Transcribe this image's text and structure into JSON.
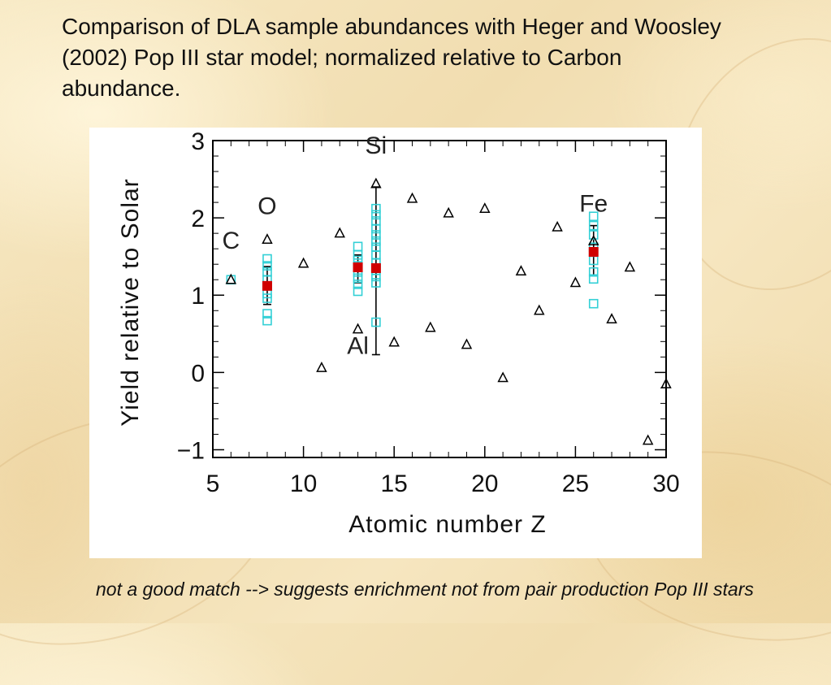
{
  "slide": {
    "title": "Comparison of DLA sample abundances with Heger and Woosley (2002) Pop III star model; normalized relative to Carbon abundance.",
    "footer": "not a good match --> suggests enrichment not from pair production Pop III stars"
  },
  "chart_data": {
    "type": "scatter",
    "xlabel": "Atomic number Z",
    "ylabel": "Yield relative to Solar",
    "xlim": [
      5,
      30
    ],
    "ylim": [
      -1.1,
      3.0
    ],
    "xticks": [
      "5",
      "10",
      "15",
      "20",
      "25",
      "30"
    ],
    "yticks": [
      "3",
      "2",
      "1",
      "0",
      "−1"
    ],
    "xtick_values": [
      5,
      10,
      15,
      20,
      25,
      30
    ],
    "ytick_values": [
      3,
      2,
      1,
      0,
      -1
    ],
    "grid": false,
    "colors": {
      "model": "#000000",
      "dla": "#33d0d6",
      "mean": "#d00000",
      "axis": "#000000"
    },
    "model_points": [
      {
        "x": 6,
        "y": 1.2
      },
      {
        "x": 8,
        "y": 1.72
      },
      {
        "x": 10,
        "y": 1.41
      },
      {
        "x": 11,
        "y": 0.06
      },
      {
        "x": 12,
        "y": 1.8
      },
      {
        "x": 13,
        "y": 0.56
      },
      {
        "x": 14,
        "y": 2.44
      },
      {
        "x": 15,
        "y": 0.39
      },
      {
        "x": 16,
        "y": 2.25
      },
      {
        "x": 17,
        "y": 0.58
      },
      {
        "x": 18,
        "y": 2.06
      },
      {
        "x": 19,
        "y": 0.36
      },
      {
        "x": 20,
        "y": 2.12
      },
      {
        "x": 21,
        "y": -0.07
      },
      {
        "x": 22,
        "y": 1.31
      },
      {
        "x": 23,
        "y": 0.8
      },
      {
        "x": 24,
        "y": 1.88
      },
      {
        "x": 25,
        "y": 1.16
      },
      {
        "x": 26,
        "y": 1.7
      },
      {
        "x": 27,
        "y": 0.69
      },
      {
        "x": 28,
        "y": 1.36
      },
      {
        "x": 29,
        "y": -0.88
      },
      {
        "x": 30,
        "y": -0.15
      }
    ],
    "dla_points": [
      {
        "x": 6,
        "y": 1.2
      },
      {
        "x": 8,
        "y": 1.47
      },
      {
        "x": 8,
        "y": 1.38
      },
      {
        "x": 8,
        "y": 1.3
      },
      {
        "x": 8,
        "y": 1.2
      },
      {
        "x": 8,
        "y": 1.12
      },
      {
        "x": 8,
        "y": 1.02
      },
      {
        "x": 8,
        "y": 0.96
      },
      {
        "x": 8,
        "y": 0.76
      },
      {
        "x": 8,
        "y": 0.67
      },
      {
        "x": 13,
        "y": 1.63
      },
      {
        "x": 13,
        "y": 1.52
      },
      {
        "x": 13,
        "y": 1.45
      },
      {
        "x": 13,
        "y": 1.38
      },
      {
        "x": 13,
        "y": 1.3
      },
      {
        "x": 13,
        "y": 1.22
      },
      {
        "x": 13,
        "y": 1.14
      },
      {
        "x": 13,
        "y": 1.05
      },
      {
        "x": 14,
        "y": 2.12
      },
      {
        "x": 14,
        "y": 2.04
      },
      {
        "x": 14,
        "y": 1.96
      },
      {
        "x": 14,
        "y": 1.86
      },
      {
        "x": 14,
        "y": 1.78
      },
      {
        "x": 14,
        "y": 1.7
      },
      {
        "x": 14,
        "y": 1.62
      },
      {
        "x": 14,
        "y": 1.52
      },
      {
        "x": 14,
        "y": 1.42
      },
      {
        "x": 14,
        "y": 1.32
      },
      {
        "x": 14,
        "y": 1.24
      },
      {
        "x": 14,
        "y": 1.16
      },
      {
        "x": 14,
        "y": 0.65
      },
      {
        "x": 26,
        "y": 2.02
      },
      {
        "x": 26,
        "y": 1.9
      },
      {
        "x": 26,
        "y": 1.78
      },
      {
        "x": 26,
        "y": 1.62
      },
      {
        "x": 26,
        "y": 1.45
      },
      {
        "x": 26,
        "y": 1.3
      },
      {
        "x": 26,
        "y": 1.21
      },
      {
        "x": 26,
        "y": 0.89
      }
    ],
    "dla_means": [
      {
        "x": 8,
        "y": 1.12,
        "ylo": 0.88,
        "yhi": 1.37
      },
      {
        "x": 13,
        "y": 1.36,
        "ylo": 1.16,
        "yhi": 1.52
      },
      {
        "x": 14,
        "y": 1.35,
        "ylo": 0.23,
        "yhi": 2.4
      },
      {
        "x": 26,
        "y": 1.56,
        "ylo": 1.26,
        "yhi": 1.9
      }
    ],
    "annotations": [
      {
        "text": "C",
        "x": 6,
        "y": 1.6
      },
      {
        "text": "O",
        "x": 8,
        "y": 2.05
      },
      {
        "text": "Si",
        "x": 14,
        "y": 2.83
      },
      {
        "text": "Al",
        "x": 13,
        "y": 0.24
      },
      {
        "text": "Fe",
        "x": 26,
        "y": 2.08
      }
    ]
  }
}
